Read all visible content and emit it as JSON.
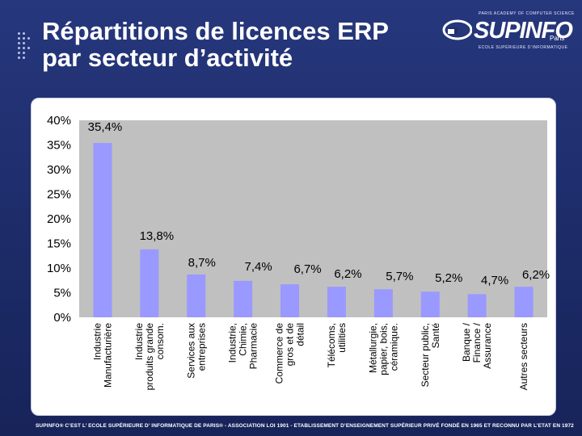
{
  "slide": {
    "title_line1": "Répartitions de licences ERP",
    "title_line2": "par secteur d’activité"
  },
  "logo": {
    "tagline": "PARIS ACADEMY OF COMPUTER SCIENCE",
    "name": "SUPINFO",
    "city": "Paris",
    "subtitle": "ECOLE SUPÉRIEURE D’INFORMATIQUE"
  },
  "footer": {
    "text": "SUPINFO® C’EST L’ ECOLE SUPÉRIEURE D’ INFORMATIQUE DE PARIS® - ASSOCIATION LOI 1901 - ETABLISSEMENT D’ENSEIGNEMENT SUPÉRIEUR PRIVÉ FONDÉ EN 1965 ET RECONNU PAR L’ETAT EN 1972"
  },
  "colors": {
    "bar_fill": "#9999ff",
    "bar_stroke": "#000000",
    "plot_bg": "#c0c0c0",
    "slide_bg": "#1f2f6e"
  },
  "chart_data": {
    "type": "bar",
    "title": "",
    "xlabel": "",
    "ylabel": "",
    "ylim": [
      0,
      40
    ],
    "yticks": [
      "40%",
      "35%",
      "30%",
      "25%",
      "20%",
      "15%",
      "10%",
      "5%",
      "0%"
    ],
    "grid": false,
    "legend": "none",
    "categories": [
      [
        "Industrie",
        "Manufacturière"
      ],
      [
        "Industrie",
        "produits grande",
        "consom."
      ],
      [
        "Services aux",
        "entreprises"
      ],
      [
        "Industrie,",
        "Chimie,",
        "Pharmacie"
      ],
      [
        "Commerce de",
        "gros et de",
        "détail"
      ],
      [
        "Télécoms,",
        "utilities"
      ],
      [
        "Métallurgie,",
        "papier, bois,",
        "céramique."
      ],
      [
        "Secteur public,",
        "Santé"
      ],
      [
        "Banque /",
        "Finance /",
        "Assurance"
      ],
      [
        "Autres secteurs"
      ]
    ],
    "values": [
      35.4,
      13.8,
      8.7,
      7.4,
      6.7,
      6.2,
      5.7,
      5.2,
      4.7,
      6.2
    ],
    "value_labels": [
      "35,4%",
      "13,8%",
      "8,7%",
      "7,4%",
      "6,7%",
      "6,2%",
      "5,7%",
      "5,2%",
      "4,7%",
      "6,2%"
    ]
  }
}
